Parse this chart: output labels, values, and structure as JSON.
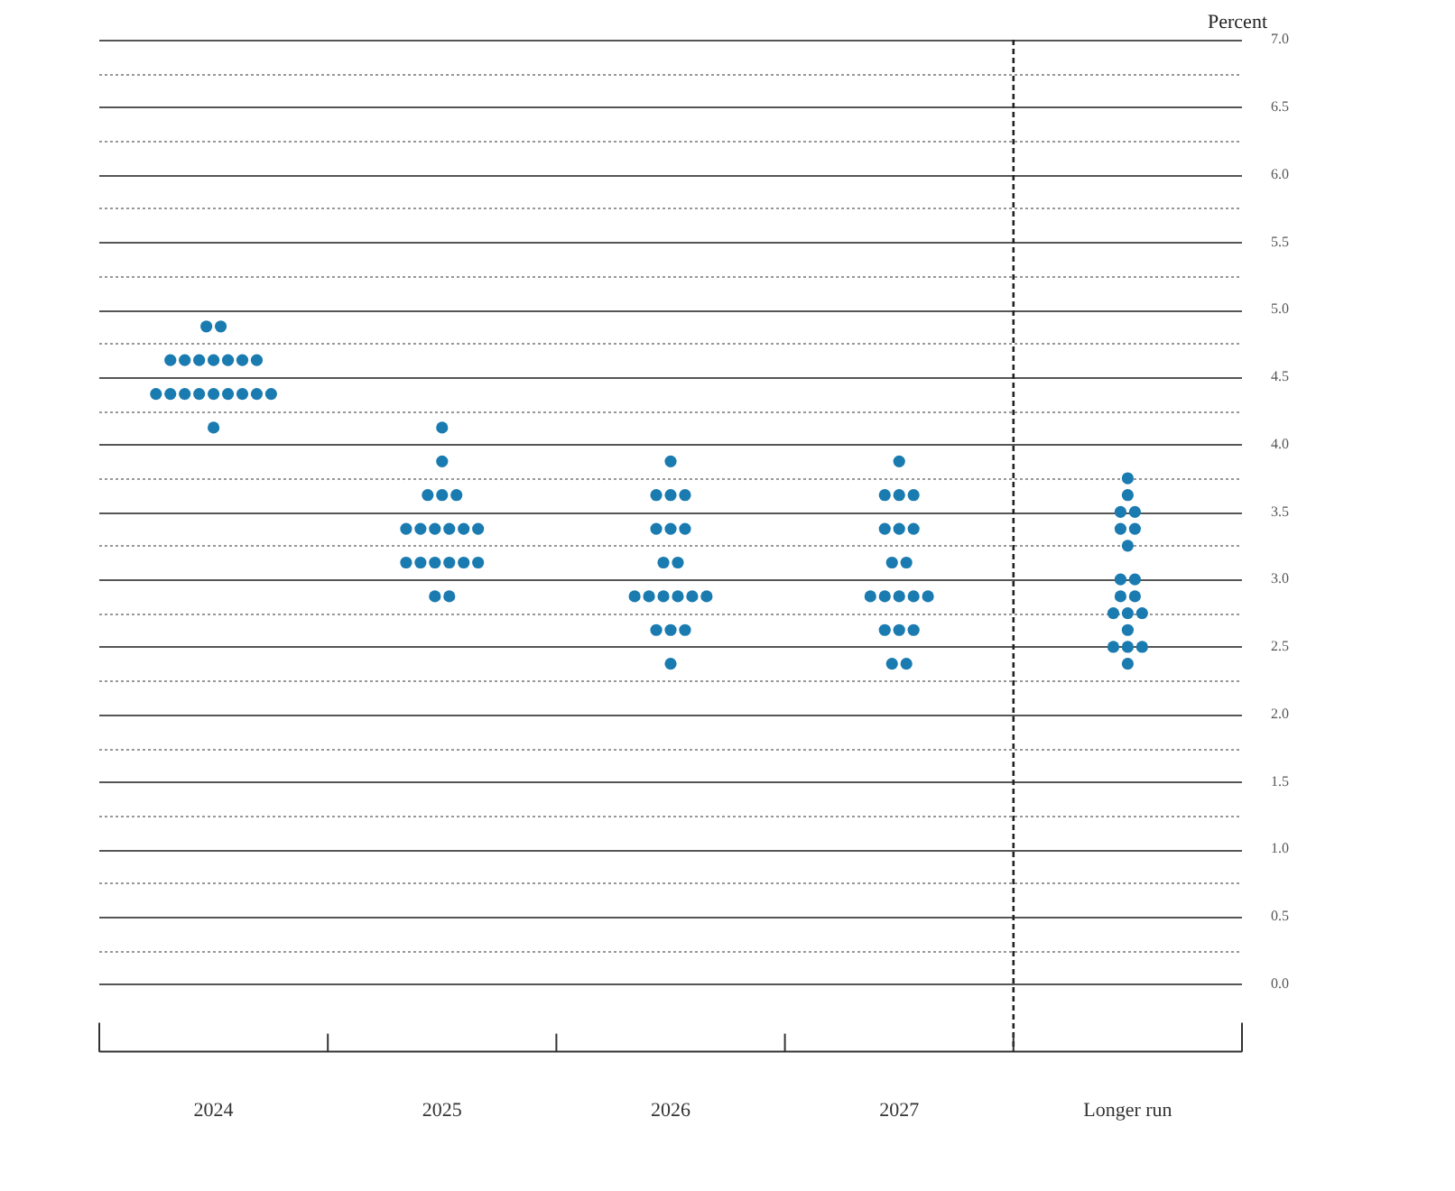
{
  "chart_data": {
    "type": "scatter",
    "ylabel": "Percent",
    "categories": [
      "2024",
      "2025",
      "2026",
      "2027",
      "Longer run"
    ],
    "series": [
      {
        "values": [
          4.875,
          4.125,
          3.875,
          3.875,
          3.75
        ]
      },
      {
        "values": [
          4.875,
          3.875,
          3.625,
          3.625,
          3.625
        ]
      },
      {
        "values": [
          4.625,
          3.625,
          3.625,
          3.625,
          3.5
        ]
      },
      {
        "values": [
          4.625,
          3.625,
          3.625,
          3.625,
          3.5
        ]
      },
      {
        "values": [
          4.625,
          3.625,
          3.375,
          3.375,
          3.375
        ]
      },
      {
        "values": [
          4.625,
          3.375,
          3.375,
          3.375,
          3.375
        ]
      },
      {
        "values": [
          4.625,
          3.375,
          3.375,
          3.375,
          3.25
        ]
      },
      {
        "values": [
          4.625,
          3.375,
          3.125,
          3.125,
          3
        ]
      },
      {
        "values": [
          4.625,
          3.375,
          3.125,
          3.125,
          3
        ]
      },
      {
        "values": [
          4.375,
          3.375,
          2.875,
          2.875,
          2.875
        ]
      },
      {
        "values": [
          4.375,
          3.375,
          2.875,
          2.875,
          2.875
        ]
      },
      {
        "values": [
          4.375,
          3.125,
          2.875,
          2.875,
          2.75
        ]
      },
      {
        "values": [
          4.375,
          3.125,
          2.875,
          2.875,
          2.75
        ]
      },
      {
        "values": [
          4.375,
          3.125,
          2.875,
          2.875,
          2.75
        ]
      },
      {
        "values": [
          4.375,
          3.125,
          2.875,
          2.625,
          2.625
        ]
      },
      {
        "values": [
          4.375,
          3.125,
          2.625,
          2.625,
          2.5
        ]
      },
      {
        "values": [
          4.375,
          3.125,
          2.625,
          2.625,
          2.5
        ]
      },
      {
        "values": [
          4.375,
          2.875,
          2.625,
          2.375,
          2.5
        ]
      },
      {
        "values": [
          4.125,
          2.875,
          2.375,
          2.375,
          2.375
        ]
      }
    ],
    "color": "#1a7bb0",
    "marker": "circle",
    "ref_lines": [
      {
        "axis": "x",
        "value": "Longer run",
        "color": "#222222",
        "line_style": "dashed"
      }
    ],
    "grid": "y",
    "ylim": [
      -0.5,
      7
    ],
    "yticks": [
      {
        "value": 0,
        "label": "0.0"
      },
      {
        "value": 0.25,
        "label": null
      },
      {
        "value": 0.5,
        "label": "0.5"
      },
      {
        "value": 0.75,
        "label": null
      },
      {
        "value": 1,
        "label": "1.0"
      },
      {
        "value": 1.25,
        "label": null
      },
      {
        "value": 1.5,
        "label": "1.5"
      },
      {
        "value": 1.75,
        "label": null
      },
      {
        "value": 2,
        "label": "2.0"
      },
      {
        "value": 2.25,
        "label": null
      },
      {
        "value": 2.5,
        "label": "2.5"
      },
      {
        "value": 2.75,
        "label": null
      },
      {
        "value": 3,
        "label": "3.0"
      },
      {
        "value": 3.25,
        "label": null
      },
      {
        "value": 3.5,
        "label": "3.5"
      },
      {
        "value": 3.75,
        "label": null
      },
      {
        "value": 4,
        "label": "4.0"
      },
      {
        "value": 4.25,
        "label": null
      },
      {
        "value": 4.5,
        "label": "4.5"
      },
      {
        "value": 4.75,
        "label": null
      },
      {
        "value": 5,
        "label": "5.0"
      },
      {
        "value": 5.25,
        "label": null
      },
      {
        "value": 5.5,
        "label": "5.5"
      },
      {
        "value": 5.75,
        "label": null
      },
      {
        "value": 6,
        "label": "6.0"
      },
      {
        "value": 6.25,
        "label": null
      },
      {
        "value": 6.5,
        "label": "6.5"
      },
      {
        "value": 6.75,
        "label": null
      },
      {
        "value": 7,
        "label": "7.0"
      }
    ]
  }
}
